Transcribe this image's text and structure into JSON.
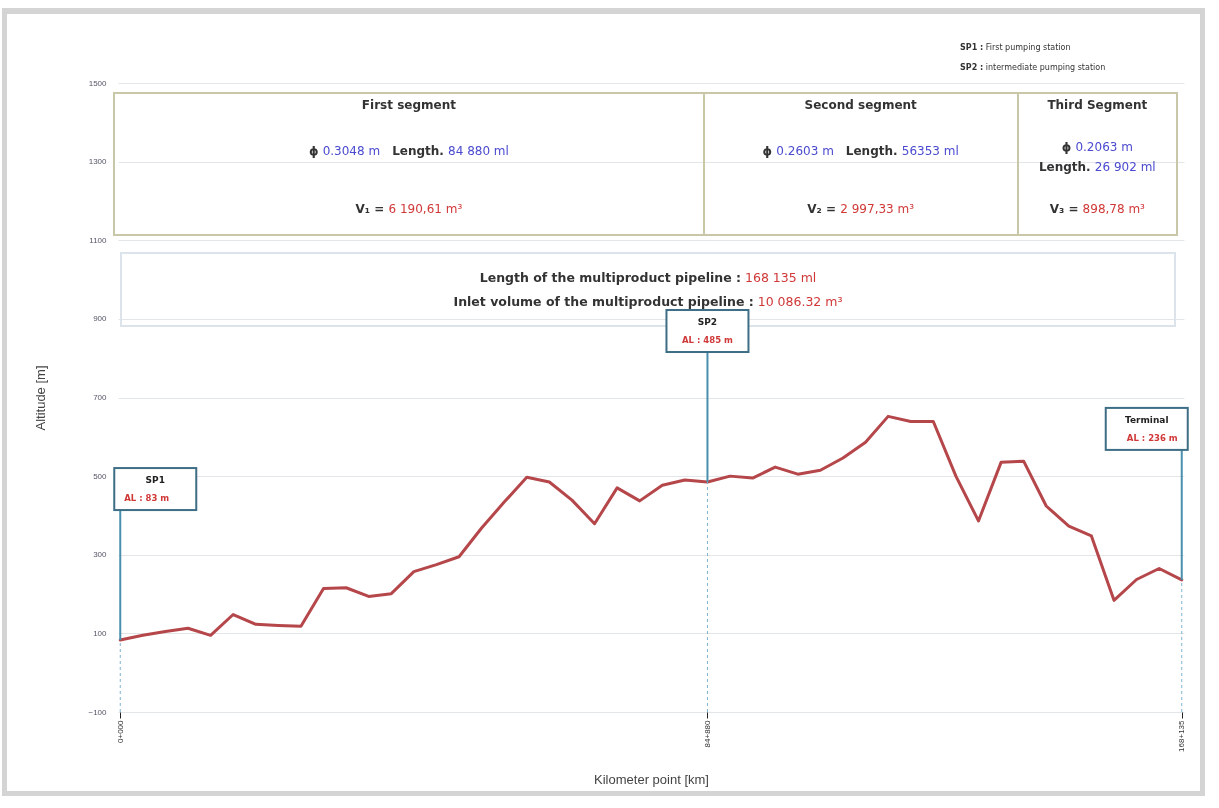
{
  "chart_data": {
    "type": "line",
    "xlabel": "Kilometer point [km]",
    "ylabel": "Altitude [m]",
    "categories": [
      "0+000",
      null,
      null,
      null,
      null,
      null,
      null,
      null,
      null,
      null,
      null,
      null,
      null,
      null,
      null,
      null,
      null,
      null,
      null,
      null,
      null,
      null,
      null,
      null,
      null,
      null,
      "84+880",
      null,
      null,
      null,
      null,
      null,
      null,
      null,
      null,
      null,
      null,
      null,
      null,
      null,
      null,
      null,
      null,
      null,
      null,
      null,
      null,
      "168+135"
    ],
    "values": [
      83,
      95,
      105,
      113,
      95,
      148,
      123,
      120,
      118,
      214,
      216,
      194,
      201,
      257,
      275,
      295,
      368,
      434,
      497,
      485,
      439,
      379,
      470,
      437,
      477,
      490,
      485,
      500,
      495,
      523,
      505,
      515,
      546,
      586,
      652,
      639,
      639,
      500,
      386,
      535,
      538,
      424,
      373,
      348,
      184,
      237,
      265,
      236
    ],
    "color": "#b5464a",
    "ylim": [
      -100,
      1500
    ],
    "yticks": [
      -100,
      100,
      300,
      500,
      700,
      900,
      1100,
      1300,
      1500
    ],
    "grid": "y",
    "annotations": [
      "SP1 : First pumping station",
      "SP2 : intermediate pumping station",
      "First segment",
      "ϕ 0.3048 m",
      "Length. 84 880 ml",
      "V₁ = 6 190,61 m³",
      "Second segment",
      "ϕ 0.2603 m",
      "Length. 56353 ml",
      "V₂ = 2 997,33 m³",
      "Third Segment",
      "ϕ 0.2063 m",
      "Length. 26 902 ml",
      "V₃ = 898,78 m³",
      "Length of the multiproduct pipeline : 168 135 ml",
      "Inlet volume of the multiproduct pipeline : 10 086.32 m³",
      "SP1",
      "SP2",
      "Terminal",
      {
        "text": "AL : 83 m",
        "x": "0+000",
        "y": 83
      },
      {
        "text": "AL : 485 m",
        "x": "84+880",
        "y": 485
      },
      {
        "text": "AL : 236 m",
        "x": "168+135",
        "y": 236
      }
    ],
    "ref_lines": [
      {
        "axis": "x",
        "value": "0+000",
        "line_style": "dashed",
        "color": "#7fb3d0"
      },
      {
        "axis": "x",
        "value": "84+880",
        "line_style": "dashed",
        "color": "#7fb3d0"
      },
      {
        "axis": "x",
        "value": "168+135",
        "line_style": "dashed",
        "color": "#7fb3d0"
      }
    ]
  }
}
